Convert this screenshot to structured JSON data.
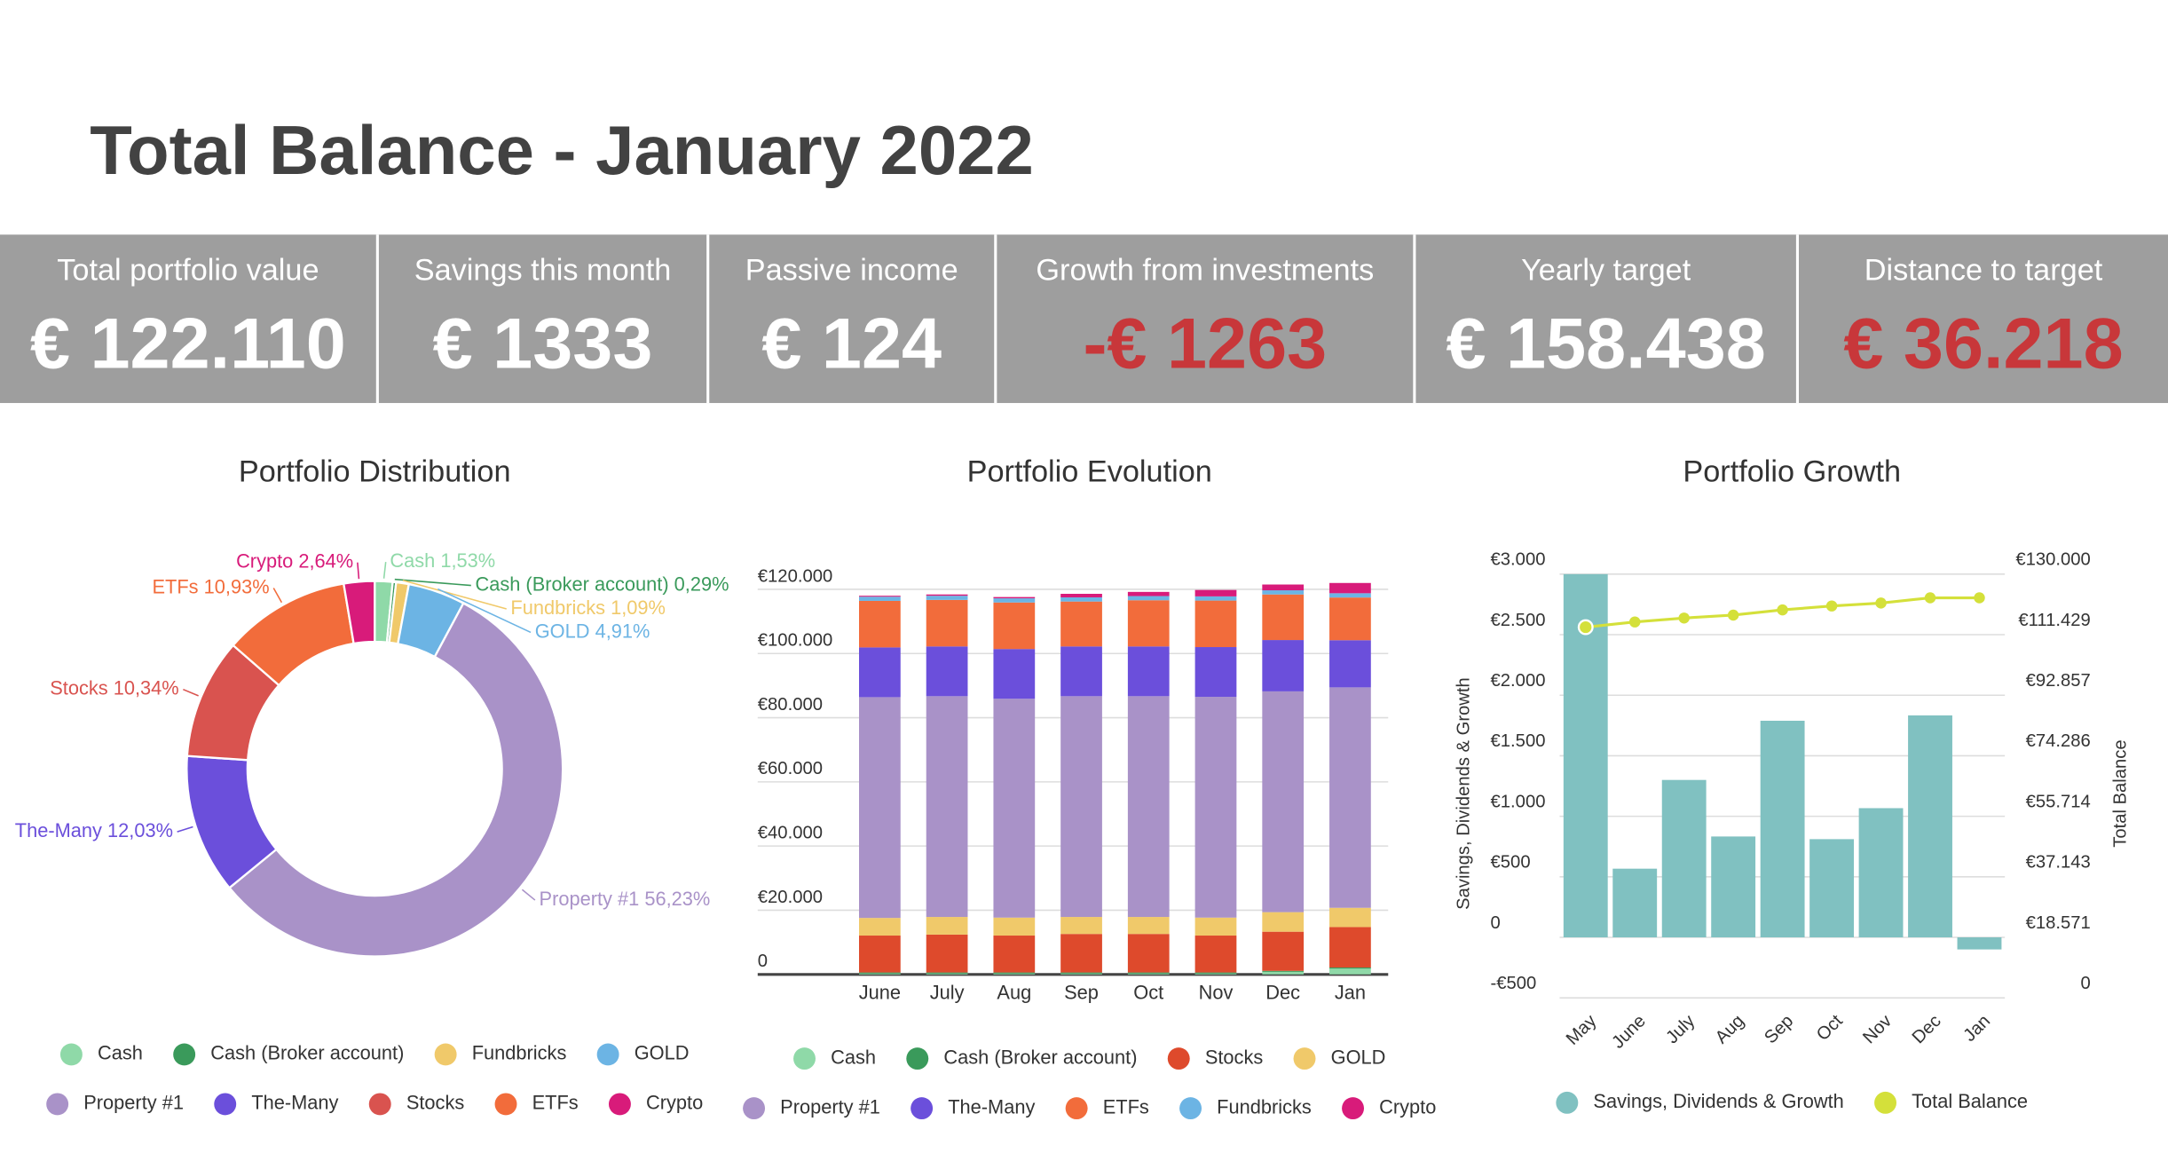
{
  "title": "Total Balance - January 2022",
  "kpis": [
    {
      "label": "Total portfolio value",
      "value": "€ 122.110",
      "color": "#ffffff"
    },
    {
      "label": "Savings this month",
      "value": "€ 1333",
      "color": "#ffffff"
    },
    {
      "label": "Passive income",
      "value": "€ 124",
      "color": "#ffffff"
    },
    {
      "label": "Growth from investments",
      "value": "-€ 1263",
      "color": "#c8373a"
    },
    {
      "label": "Yearly target",
      "value": "€ 158.438",
      "color": "#ffffff"
    },
    {
      "label": "Distance to target",
      "value": "€ 36.218",
      "color": "#c8373a"
    }
  ],
  "chart_data": [
    {
      "type": "pie",
      "title": "Portfolio Distribution",
      "donut": true,
      "categories": [
        "Cash",
        "Cash (Broker account)",
        "Fundbricks",
        "GOLD",
        "Property #1",
        "The-Many",
        "Stocks",
        "ETFs",
        "Crypto"
      ],
      "values": [
        1.53,
        0.29,
        1.09,
        4.91,
        56.23,
        12.03,
        10.34,
        10.93,
        2.64
      ],
      "value_labels": [
        "1,53%",
        "0,29%",
        "1,09%",
        "4,91%",
        "56,23%",
        "12,03%",
        "10,34%",
        "10,93%",
        "2,64%"
      ],
      "colors": [
        "#8fd9a8",
        "#3a9a5b",
        "#f0c96a",
        "#6cb4e4",
        "#a992c8",
        "#6b4fdb",
        "#d9534f",
        "#f26c3b",
        "#d81b7a"
      ]
    },
    {
      "type": "bar",
      "stacked": true,
      "title": "Portfolio Evolution",
      "grid": true,
      "categories": [
        "June",
        "July",
        "Aug",
        "Sep",
        "Oct",
        "Nov",
        "Dec",
        "Jan"
      ],
      "ylim": [
        0,
        120000
      ],
      "yticks": [
        0,
        {
          "value": 20000,
          "label": "€20.000"
        },
        {
          "value": 40000,
          "label": "€40.000"
        },
        {
          "value": 60000,
          "label": "€60.000"
        },
        {
          "value": 80000,
          "label": "€80.000"
        },
        {
          "value": 100000,
          "label": "€100.000"
        },
        {
          "value": 120000,
          "label": "€120.000"
        }
      ],
      "series": [
        {
          "name": "Cash",
          "color": "#8fd9a8",
          "values": [
            300,
            300,
            300,
            300,
            300,
            300,
            800,
            1800
          ]
        },
        {
          "name": "Cash (Broker account)",
          "color": "#3a9a5b",
          "values": [
            300,
            300,
            300,
            300,
            300,
            300,
            300,
            350
          ]
        },
        {
          "name": "Stocks",
          "color": "#de4a2c",
          "values": [
            11500,
            11800,
            11500,
            12000,
            12000,
            11500,
            12200,
            12600
          ]
        },
        {
          "name": "GOLD",
          "color": "#f0c96a",
          "values": [
            5500,
            5500,
            5600,
            5300,
            5300,
            5600,
            6100,
            6000
          ]
        },
        {
          "name": "Property #1",
          "color": "#a992c8",
          "values": [
            68800,
            68800,
            68200,
            68800,
            68800,
            68800,
            68800,
            68700
          ]
        },
        {
          "name": "The-Many",
          "color": "#6b4fdb",
          "values": [
            15500,
            15500,
            15500,
            15500,
            15500,
            15500,
            16000,
            14700
          ]
        },
        {
          "name": "ETFs",
          "color": "#f26c3b",
          "values": [
            14500,
            14500,
            14500,
            14000,
            14400,
            14500,
            14200,
            13300
          ]
        },
        {
          "name": "Fundbricks",
          "color": "#6cb4e4",
          "values": [
            1300,
            1300,
            1300,
            1300,
            1300,
            1300,
            1300,
            1330
          ]
        },
        {
          "name": "Crypto",
          "color": "#d81b7a",
          "values": [
            300,
            400,
            400,
            1100,
            1300,
            2000,
            1800,
            3200
          ]
        }
      ]
    },
    {
      "type": "combo",
      "title": "Portfolio Growth",
      "grid": true,
      "categories": [
        "May",
        "June",
        "July",
        "Aug",
        "Sep",
        "Oct",
        "Nov",
        "Dec",
        "Jan"
      ],
      "ylabel": "Savings, Dividends & Growth",
      "y2label": "Total Balance",
      "ylim": [
        -500,
        3000
      ],
      "yticks": [
        {
          "value": -500,
          "label": "-€500"
        },
        0,
        {
          "value": 500,
          "label": "€500"
        },
        {
          "value": 1000,
          "label": "€1.000"
        },
        {
          "value": 1500,
          "label": "€1.500"
        },
        {
          "value": 2000,
          "label": "€2.000"
        },
        {
          "value": 2500,
          "label": "€2.500"
        },
        {
          "value": 3000,
          "label": "€3.000"
        }
      ],
      "y2lim": [
        0,
        130000
      ],
      "y2ticks": [
        0,
        {
          "value": 18571,
          "label": "€18.571"
        },
        {
          "value": 37143,
          "label": "€37.143"
        },
        {
          "value": 55714,
          "label": "€55.714"
        },
        {
          "value": 74286,
          "label": "€74.286"
        },
        {
          "value": 92857,
          "label": "€92.857"
        },
        {
          "value": 111429,
          "label": "€111.429"
        },
        {
          "value": 130000,
          "label": "€130.000"
        }
      ],
      "series": [
        {
          "name": "Savings, Dividends & Growth",
          "color": "#80c1c1",
          "kind": "bar",
          "values": [
            3000,
            567,
            1300,
            833,
            1789,
            811,
            1067,
            1833,
            -100
          ]
        },
        {
          "name": "Total Balance",
          "color": "#d4e03a",
          "kind": "line",
          "axis": "y2",
          "values": [
            109500,
            111100,
            112300,
            113200,
            114800,
            116000,
            116900,
            118500,
            118500
          ]
        }
      ]
    }
  ]
}
